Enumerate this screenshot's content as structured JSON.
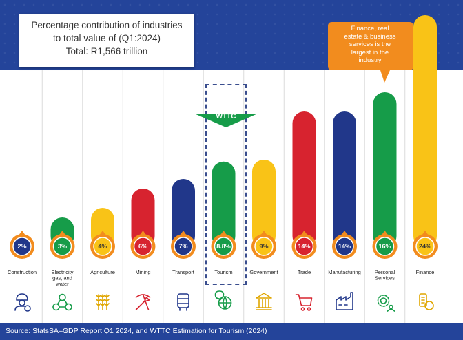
{
  "colors": {
    "navy": "#24449a",
    "bar_navy": "#21378a",
    "red": "#d7232f",
    "green": "#169c49",
    "yellow": "#f9c317",
    "orange": "#f28c1e"
  },
  "title": {
    "line1": "Percentage contribution of industries",
    "line2": "to total value of (Q1:2024)",
    "line3": "Total: R1,566 trillion"
  },
  "callout": {
    "line1": "Finance, real",
    "line2": "estate & business",
    "line3": "services is the",
    "line4": "largest in the",
    "line5": "industry"
  },
  "wttc_label": "WTTC",
  "source": "Source: StatsSA–GDP Report Q1 2024, and WTTC Estimation for Tourism (2024)",
  "chart_data": {
    "type": "bar",
    "title": "Percentage contribution of industries to total value of (Q1:2024)",
    "subtitle": "Total: R1,566 trillion",
    "unit": "%",
    "highlight": "Tourism",
    "categories": [
      {
        "name": "Construction",
        "lines": [
          "Construction"
        ],
        "value": 2,
        "label": "2%",
        "color": "#21378a",
        "icon": "construction-worker-icon"
      },
      {
        "name": "Electricity gas, and water",
        "lines": [
          "Electricity",
          "gas, and",
          "water"
        ],
        "value": 3,
        "label": "3%",
        "color": "#169c49",
        "icon": "utilities-icon"
      },
      {
        "name": "Agriculture",
        "lines": [
          "Agriculture"
        ],
        "value": 4,
        "label": "4%",
        "color": "#f9c317",
        "icon": "wheat-icon"
      },
      {
        "name": "Mining",
        "lines": [
          "Mining"
        ],
        "value": 6,
        "label": "6%",
        "color": "#d7232f",
        "icon": "pickaxe-shovel-icon"
      },
      {
        "name": "Transport",
        "lines": [
          "Transport"
        ],
        "value": 7,
        "label": "7%",
        "color": "#21378a",
        "icon": "bus-icon"
      },
      {
        "name": "Tourism",
        "lines": [
          "Tourism"
        ],
        "value": 8.8,
        "label": "8.8%",
        "color": "#169c49",
        "icon": "globe-pin-icon"
      },
      {
        "name": "Government",
        "lines": [
          "Government"
        ],
        "value": 9,
        "label": "9%",
        "color": "#f9c317",
        "icon": "government-building-icon"
      },
      {
        "name": "Trade",
        "lines": [
          "Trade"
        ],
        "value": 14,
        "label": "14%",
        "color": "#d7232f",
        "icon": "shopping-cart-icon"
      },
      {
        "name": "Manufacturing",
        "lines": [
          "Manufacturing"
        ],
        "value": 14,
        "label": "14%",
        "color": "#21378a",
        "icon": "factory-icon"
      },
      {
        "name": "Personal Services",
        "lines": [
          "Personal",
          "Services"
        ],
        "value": 16,
        "label": "16%",
        "color": "#169c49",
        "icon": "gear-person-icon"
      },
      {
        "name": "Finance",
        "lines": [
          "Finance"
        ],
        "value": 24,
        "label": "24%",
        "color": "#f9c317",
        "icon": "coins-icon"
      }
    ]
  }
}
